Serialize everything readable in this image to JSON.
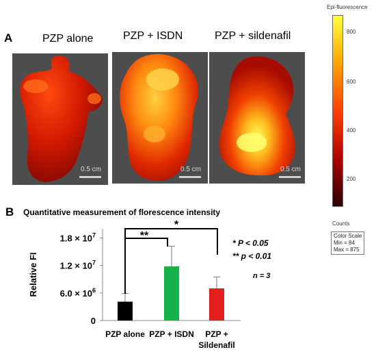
{
  "panel_a": {
    "label": "A",
    "images": [
      {
        "title": "PZP alone",
        "scale_label": "0.5 cm"
      },
      {
        "title": "PZP + ISDN",
        "scale_label": "0.5 cm"
      },
      {
        "title": "PZP + sildenafil",
        "scale_label": "0.5 cm"
      }
    ],
    "color_scale": {
      "title": "Epi-fluorescence",
      "ticks": [
        "800",
        "600",
        "400",
        "200"
      ],
      "units_label": "Counts",
      "info_lines": [
        "Color Scale",
        "Min = 84",
        "Max = 875"
      ],
      "colors": [
        "#ffff40",
        "#ffa500",
        "#ff4000",
        "#b00000",
        "#2a0000"
      ]
    }
  },
  "panel_b": {
    "label": "B",
    "stats": [
      "* P < 0.05",
      "** p < 0.01",
      "n = 3"
    ],
    "significance": [
      "**",
      "*"
    ]
  },
  "chart_data": {
    "type": "bar",
    "title": "Quantitative measurement of florescence intensity",
    "ylabel": "Relative FI",
    "xlabel": "",
    "categories": [
      [
        "PZP alone"
      ],
      [
        "PZP + ISDN"
      ],
      [
        "PZP +",
        "Sildenafil"
      ]
    ],
    "values": [
      4100000,
      11800000,
      7000000
    ],
    "errors": [
      1800000,
      4400000,
      2500000
    ],
    "colors": [
      "#000000",
      "#18b24c",
      "#e31e1e"
    ],
    "ylim": [
      0,
      20000000
    ],
    "yticks": [
      {
        "value": 0,
        "mantissa": "0",
        "exp": ""
      },
      {
        "value": 6000000,
        "mantissa": "6.0 × 10",
        "exp": "6"
      },
      {
        "value": 12000000,
        "mantissa": "1.2 × 10",
        "exp": "7"
      },
      {
        "value": 18000000,
        "mantissa": "1.8 × 10",
        "exp": "7"
      }
    ],
    "grid": false,
    "legend": "none"
  }
}
